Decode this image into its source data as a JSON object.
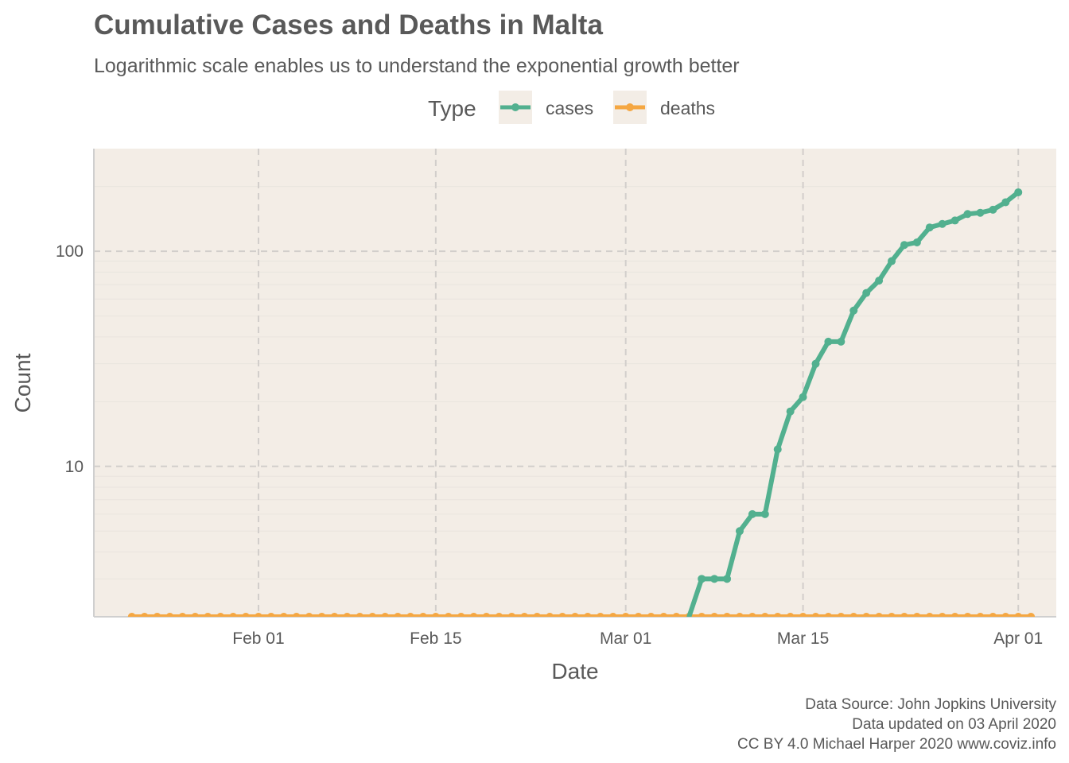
{
  "chart_data": {
    "type": "line",
    "title": "Cumulative Cases and Deaths in Malta",
    "subtitle": "Logarithmic scale enables us to understand the exponential growth better",
    "xlabel": "Date",
    "ylabel": "Count",
    "yscale": "log10",
    "ylim": [
      2,
      300
    ],
    "xlim": [
      "2020-01-19",
      "2020-04-04"
    ],
    "x_ticks": [
      {
        "date": "2020-02-01",
        "label": "Feb 01"
      },
      {
        "date": "2020-02-15",
        "label": "Feb 15"
      },
      {
        "date": "2020-03-01",
        "label": "Mar 01"
      },
      {
        "date": "2020-03-15",
        "label": "Mar 15"
      },
      {
        "date": "2020-04-01",
        "label": "Apr 01"
      }
    ],
    "y_ticks": [
      {
        "value": 10,
        "label": "10"
      },
      {
        "value": 100,
        "label": "100"
      }
    ],
    "grid": true,
    "legend": {
      "title": "Type",
      "position": "top"
    },
    "caption": [
      "Data Source: John Jopkins University",
      "Data updated on 03 April 2020",
      "CC BY 4.0 Michael Harper 2020 www.coviz.info"
    ],
    "series": [
      {
        "name": "cases",
        "color": "#52b08f",
        "start_date": "2020-03-07",
        "values": [
          3,
          3,
          3,
          5,
          6,
          6,
          12,
          18,
          21,
          30,
          38,
          38,
          53,
          64,
          73,
          90,
          107,
          110,
          129,
          134,
          139,
          149,
          151,
          156,
          169,
          188
        ]
      },
      {
        "name": "deaths",
        "color": "#f5a742",
        "start_date": "2020-01-22",
        "values": [
          0,
          0,
          0,
          0,
          0,
          0,
          0,
          0,
          0,
          0,
          0,
          0,
          0,
          0,
          0,
          0,
          0,
          0,
          0,
          0,
          0,
          0,
          0,
          0,
          0,
          0,
          0,
          0,
          0,
          0,
          0,
          0,
          0,
          0,
          0,
          0,
          0,
          0,
          0,
          0,
          0,
          0,
          0,
          0,
          0,
          0,
          0,
          0,
          0,
          0,
          0,
          0,
          0,
          0,
          0,
          0,
          0,
          0,
          0,
          0,
          0,
          0,
          0,
          0,
          0,
          0,
          0,
          0,
          0,
          0,
          0,
          0
        ]
      }
    ]
  }
}
